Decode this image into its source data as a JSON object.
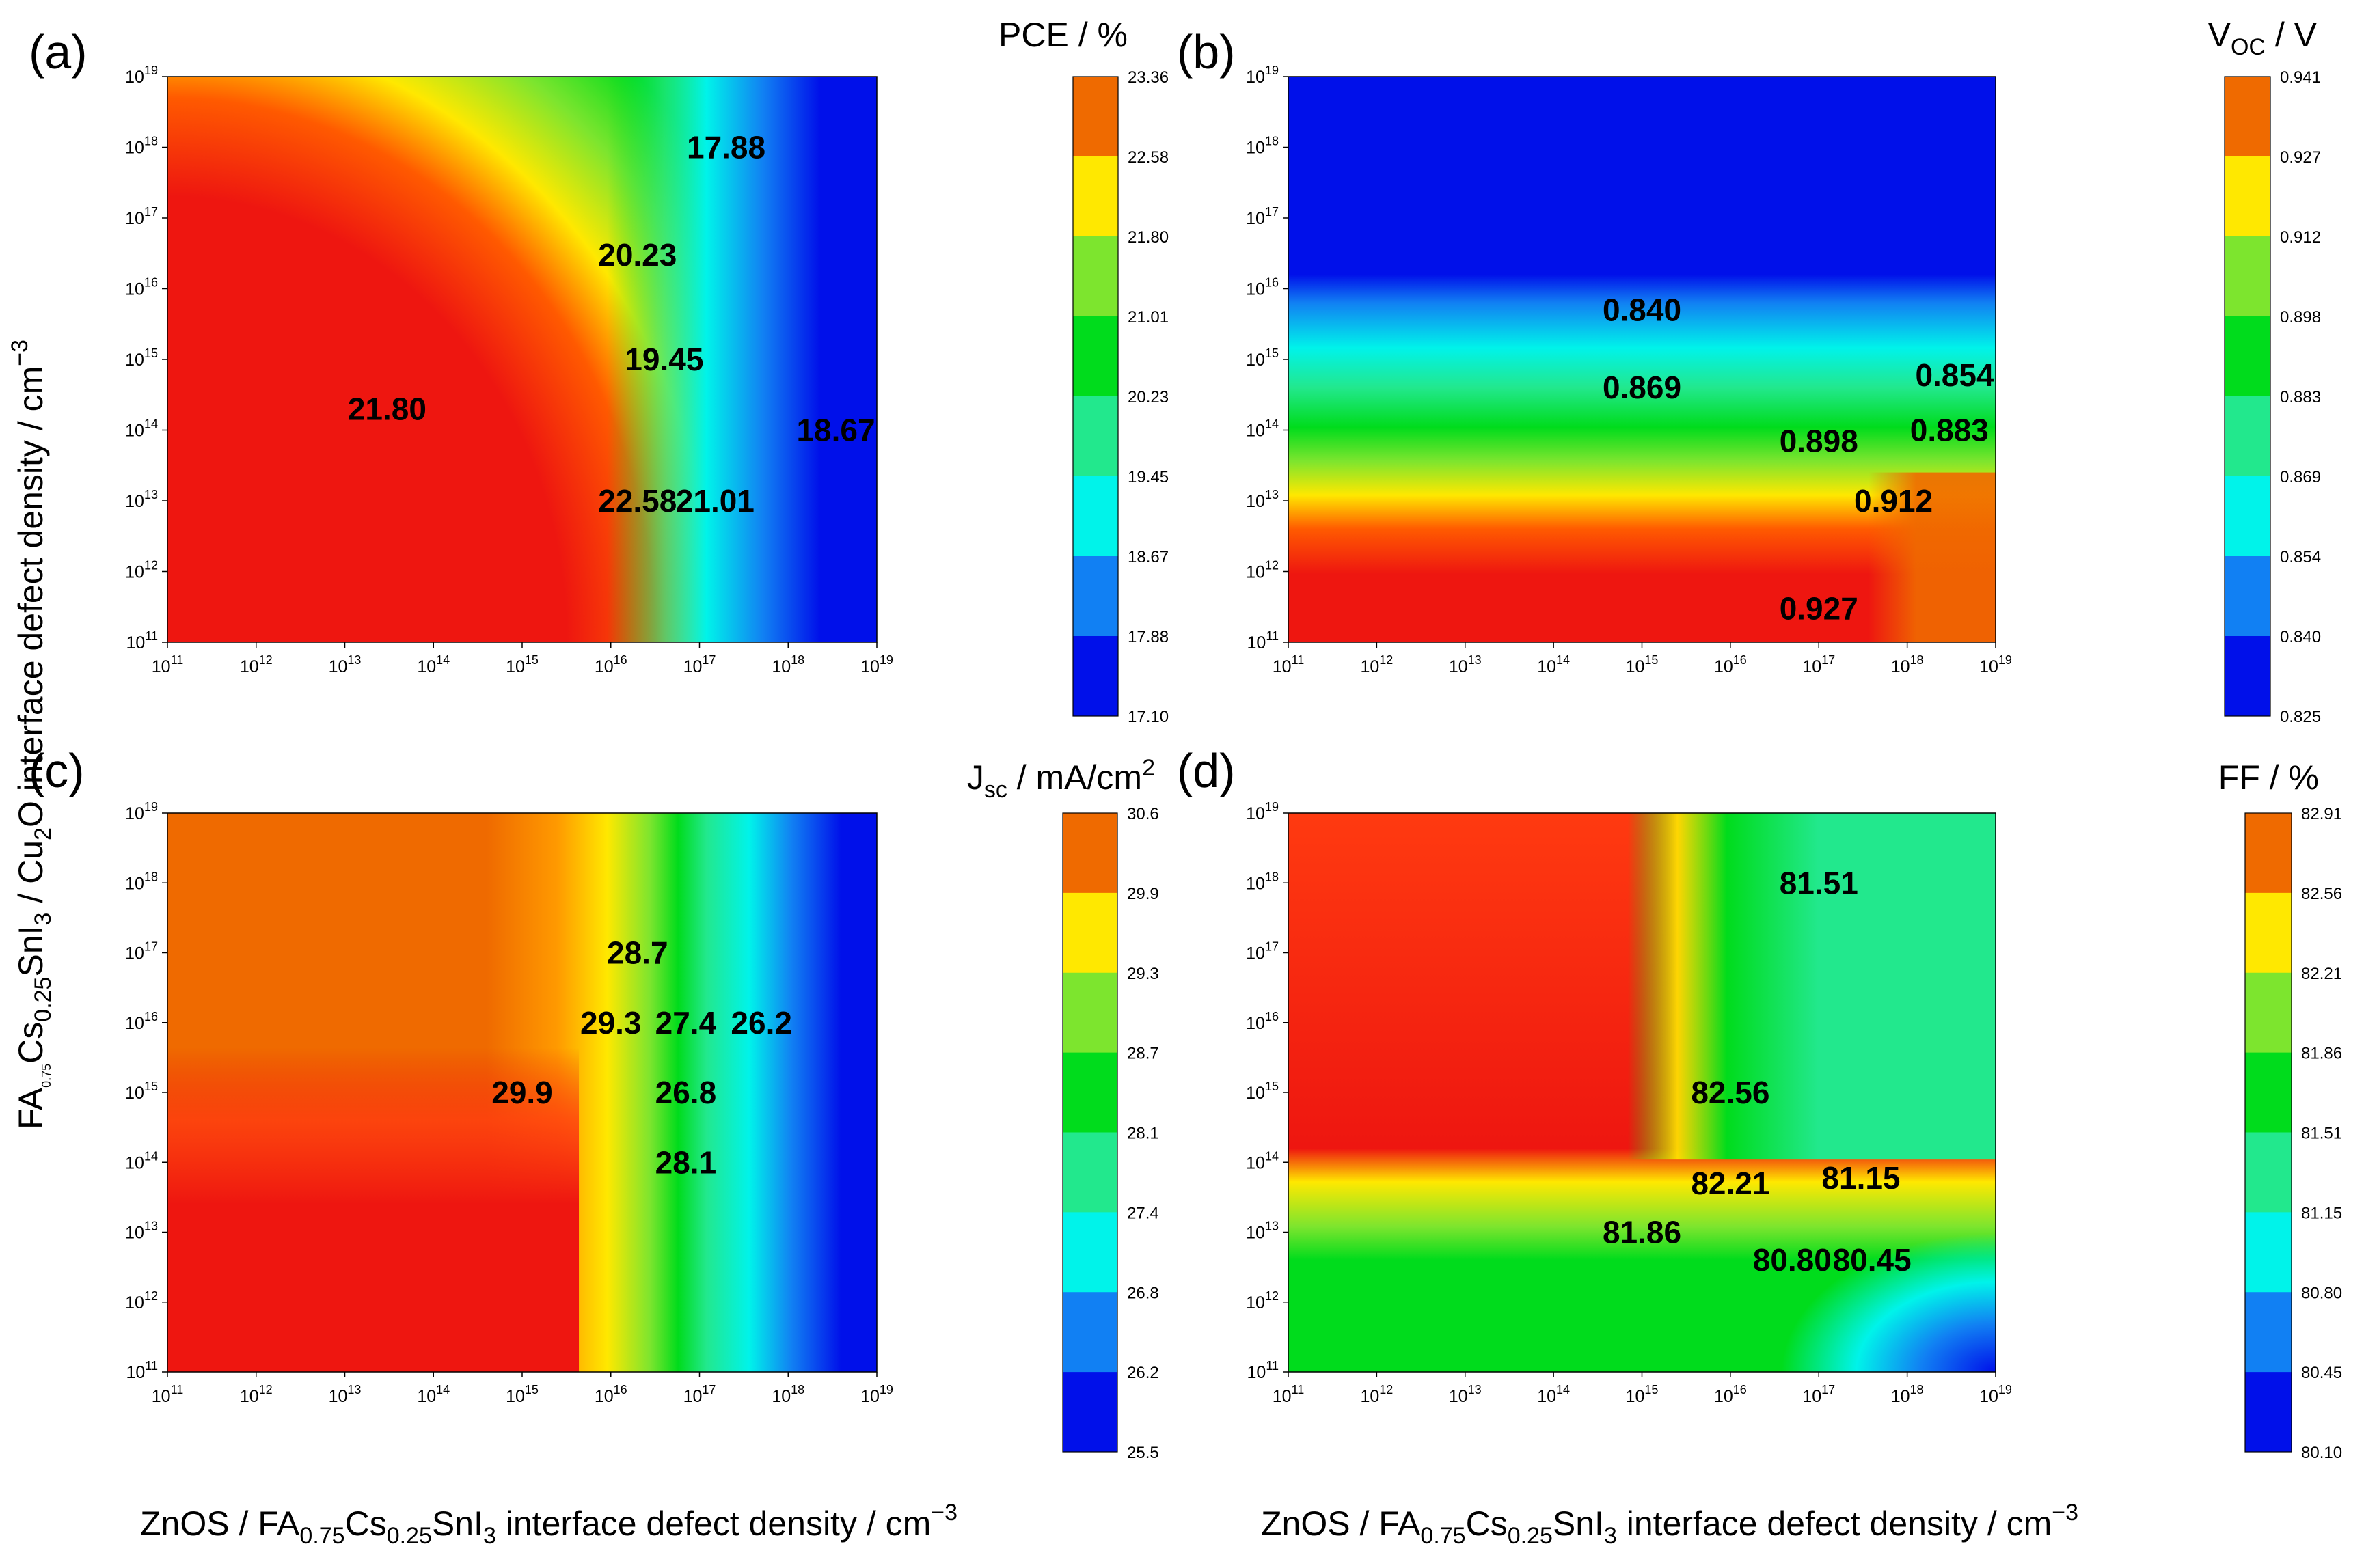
{
  "axes": {
    "x_label": {
      "pre": "ZnOS / FA",
      "s1": "0.75",
      "m1": "Cs",
      "s2": "0.25",
      "m2": "SnI",
      "s3": "3",
      "post": " interface defect density / cm",
      "sup": "−3"
    },
    "y_label": {
      "pre": "FA",
      "s1": "0.75",
      "m1": "Cs",
      "s2": "0.25",
      "m2": "SnI",
      "s3": "3",
      "m3": " / Cu",
      "s4": "2",
      "m4": "O  interface defect density / cm",
      "sup": "−3"
    },
    "tick_base": "10",
    "tick_exponents": [
      11,
      12,
      13,
      14,
      15,
      16,
      17,
      18,
      19
    ]
  },
  "panels": [
    {
      "label": "(a)",
      "title": {
        "main": "PCE / %"
      },
      "colorbar_ticks": [
        "23.36",
        "22.58",
        "21.80",
        "21.01",
        "20.23",
        "19.45",
        "18.67",
        "17.88",
        "17.10"
      ],
      "contour_labels": [
        "17.88",
        "20.23",
        "19.45",
        "21.80",
        "18.67",
        "22.58",
        "21.01"
      ]
    },
    {
      "label": "(b)",
      "title": {
        "main": "V",
        "sub": "OC",
        "rest": " / V"
      },
      "colorbar_ticks": [
        "0.941",
        "0.927",
        "0.912",
        "0.898",
        "0.883",
        "0.869",
        "0.854",
        "0.840",
        "0.825"
      ],
      "contour_labels": [
        "0.840",
        "0.854",
        "0.869",
        "0.883",
        "0.898",
        "0.912",
        "0.927"
      ]
    },
    {
      "label": "(c)",
      "title": {
        "main": "J",
        "sub": "sc",
        "rest": " / mA/cm",
        "sup": "2"
      },
      "colorbar_ticks": [
        "30.6",
        "29.9",
        "29.3",
        "28.7",
        "28.1",
        "27.4",
        "26.8",
        "26.2",
        "25.5"
      ],
      "contour_labels": [
        "28.7",
        "29.3",
        "27.4",
        "26.2",
        "29.9",
        "26.8",
        "28.1"
      ]
    },
    {
      "label": "(d)",
      "title": {
        "main": "FF / %"
      },
      "colorbar_ticks": [
        "82.91",
        "82.56",
        "82.21",
        "81.86",
        "81.51",
        "81.15",
        "80.80",
        "80.45",
        "80.10"
      ],
      "contour_labels": [
        "81.51",
        "82.56",
        "82.21",
        "81.15",
        "81.86",
        "80.80",
        "80.45"
      ]
    }
  ],
  "colors": {
    "levels": [
      "#ef6a00",
      "#ffe800",
      "#7de52e",
      "#00dc1c",
      "#22e88d",
      "#00f3ea",
      "#1180f3",
      "#0010ea"
    ],
    "hot": "#ee1610",
    "warm": "#ff3a10"
  },
  "chart_data": {
    "type": "heatmap",
    "x_range": [
      "1e11",
      "1e19"
    ],
    "y_range": [
      "1e11",
      "1e19"
    ],
    "x_scale": "log",
    "y_scale": "log",
    "panels": [
      {
        "z": "PCE (%)",
        "colorbar": [
          17.1,
          17.88,
          18.67,
          19.45,
          20.23,
          21.01,
          21.8,
          22.58,
          23.36
        ],
        "contours": [
          {
            "level": 17.88,
            "at": [
              "2e17",
              "1e18"
            ]
          },
          {
            "level": 20.23,
            "at": [
              "2e16",
              "3e16"
            ]
          },
          {
            "level": 19.45,
            "at": [
              "4e16",
              "1e15"
            ]
          },
          {
            "level": 21.8,
            "at": [
              "3e13",
              "2e14"
            ]
          },
          {
            "level": 18.67,
            "at": [
              "5e18",
              "1e14"
            ]
          },
          {
            "level": 22.58,
            "at": [
              "2e16",
              "1e13"
            ]
          },
          {
            "level": 21.01,
            "at": [
              "1.5e17",
              "1e13"
            ]
          }
        ]
      },
      {
        "z": "Voc (V)",
        "colorbar": [
          0.825,
          0.84,
          0.854,
          0.869,
          0.883,
          0.898,
          0.912,
          0.927,
          0.941
        ],
        "contours": [
          {
            "level": 0.84,
            "at": [
              "1e15",
              "5e15"
            ]
          },
          {
            "level": 0.854,
            "at": [
              "1e19",
              "6e14"
            ]
          },
          {
            "level": 0.869,
            "at": [
              "1e15",
              "4e14"
            ]
          },
          {
            "level": 0.883,
            "at": [
              "3e18",
              "1e14"
            ]
          },
          {
            "level": 0.898,
            "at": [
              "1e17",
              "7e13"
            ]
          },
          {
            "level": 0.912,
            "at": [
              "7e17",
              "1e13"
            ]
          },
          {
            "level": 0.927,
            "at": [
              "1e17",
              "3e11"
            ]
          }
        ]
      },
      {
        "z": "Jsc (mA/cm2)",
        "colorbar": [
          25.5,
          26.2,
          26.8,
          27.4,
          28.1,
          28.7,
          29.3,
          29.9,
          30.6
        ],
        "contours": [
          {
            "level": 28.7,
            "at": [
              "2e16",
              "1e17"
            ]
          },
          {
            "level": 29.3,
            "at": [
              "1e16",
              "1e16"
            ]
          },
          {
            "level": 27.4,
            "at": [
              "7e16",
              "1e16"
            ]
          },
          {
            "level": 26.2,
            "at": [
              "5e17",
              "1e16"
            ]
          },
          {
            "level": 29.9,
            "at": [
              "1e15",
              "1e15"
            ]
          },
          {
            "level": 26.8,
            "at": [
              "7e16",
              "1e15"
            ]
          },
          {
            "level": 28.1,
            "at": [
              "7e16",
              "1e14"
            ]
          }
        ]
      },
      {
        "z": "FF (%)",
        "colorbar": [
          80.1,
          80.45,
          80.8,
          81.15,
          81.51,
          81.86,
          82.21,
          82.56,
          82.91
        ],
        "contours": [
          {
            "level": 81.51,
            "at": [
              "1e17",
              "1e18"
            ]
          },
          {
            "level": 82.56,
            "at": [
              "1e16",
              "1e15"
            ]
          },
          {
            "level": 82.21,
            "at": [
              "1e16",
              "5e13"
            ]
          },
          {
            "level": 81.15,
            "at": [
              "3e17",
              "6e13"
            ]
          },
          {
            "level": 81.86,
            "at": [
              "1e15",
              "1e13"
            ]
          },
          {
            "level": 80.8,
            "at": [
              "5e16",
              "4e12"
            ]
          },
          {
            "level": 80.45,
            "at": [
              "4e17",
              "4e12"
            ]
          }
        ]
      }
    ]
  }
}
